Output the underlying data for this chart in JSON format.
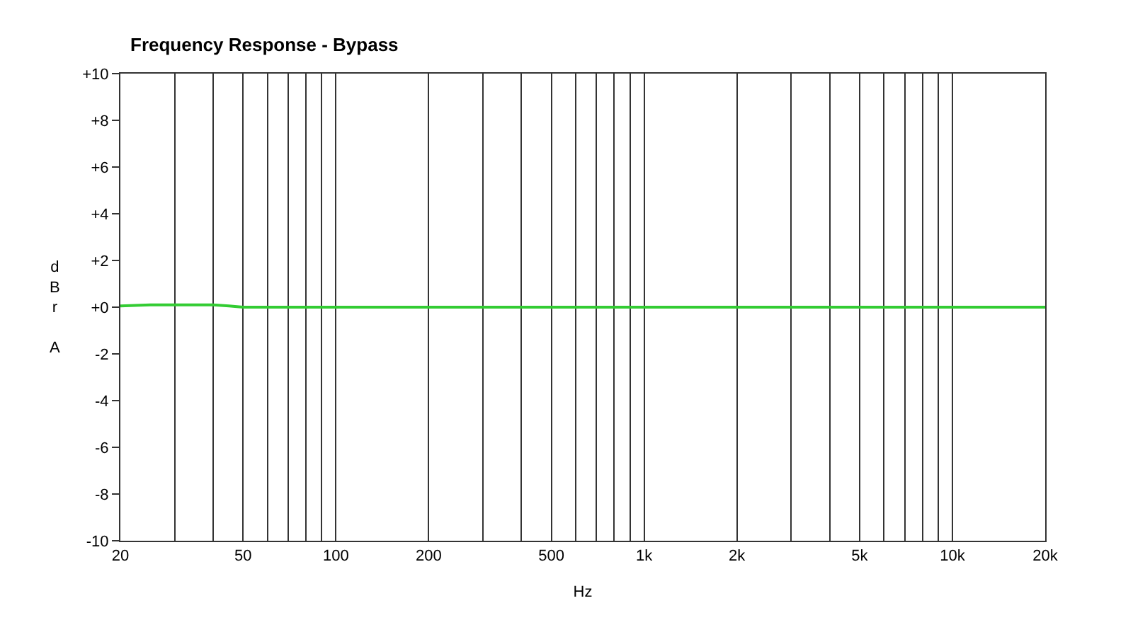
{
  "chart_data": {
    "type": "line",
    "title": "Frequency Response - Bypass",
    "xlabel": "Hz",
    "ylabel": "dBr A",
    "x": [
      20,
      25,
      30,
      40,
      45,
      50,
      100,
      1000,
      10000,
      20000
    ],
    "series": [
      {
        "color": "#33cc33",
        "values": [
          0.05,
          0.1,
          0.1,
          0.1,
          0.05,
          0,
          0,
          0,
          0,
          0
        ]
      }
    ],
    "log": "x",
    "xlim": [
      20,
      20000
    ],
    "xticks": [
      20,
      {
        "value": 30,
        "label": null
      },
      {
        "value": 40,
        "label": null
      },
      50,
      {
        "value": 60,
        "label": null
      },
      {
        "value": 70,
        "label": null
      },
      {
        "value": 80,
        "label": null
      },
      {
        "value": 90,
        "label": null
      },
      100,
      200,
      {
        "value": 300,
        "label": null
      },
      {
        "value": 400,
        "label": null
      },
      500,
      {
        "value": 600,
        "label": null
      },
      {
        "value": 700,
        "label": null
      },
      {
        "value": 800,
        "label": null
      },
      {
        "value": 900,
        "label": null
      },
      {
        "value": 1000,
        "label": "1k"
      },
      {
        "value": 2000,
        "label": "2k"
      },
      {
        "value": 3000,
        "label": null
      },
      {
        "value": 4000,
        "label": null
      },
      {
        "value": 5000,
        "label": "5k"
      },
      {
        "value": 6000,
        "label": null
      },
      {
        "value": 7000,
        "label": null
      },
      {
        "value": 8000,
        "label": null
      },
      {
        "value": 9000,
        "label": null
      },
      {
        "value": 10000,
        "label": "10k"
      },
      {
        "value": 20000,
        "label": "20k"
      }
    ],
    "ylim": [
      -10,
      10
    ],
    "yticks": [
      {
        "value": 10,
        "label": "+10"
      },
      {
        "value": 8,
        "label": "+8"
      },
      {
        "value": 6,
        "label": "+6"
      },
      {
        "value": 4,
        "label": "+4"
      },
      {
        "value": 2,
        "label": "+2"
      },
      {
        "value": 0,
        "label": "+0"
      },
      -2,
      -4,
      -6,
      -8,
      -10
    ],
    "grid": "x",
    "marker": "none",
    "line_style": "solid"
  }
}
